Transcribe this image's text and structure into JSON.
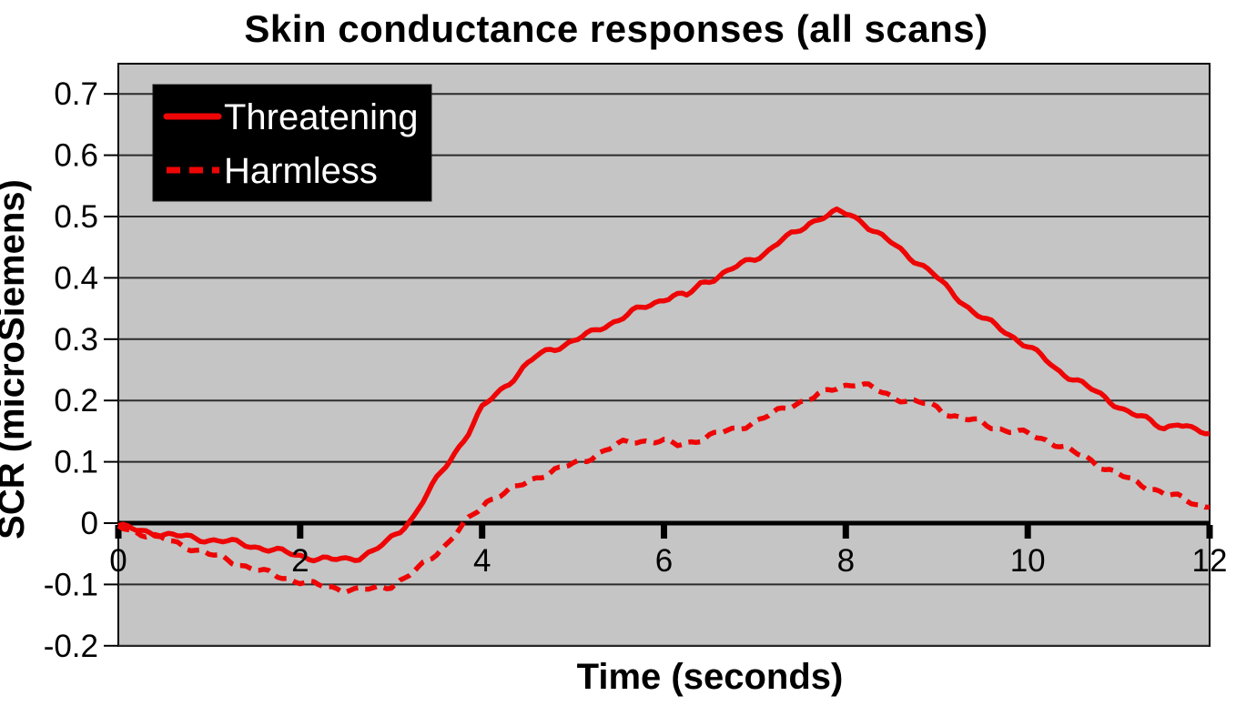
{
  "chart": {
    "background_color": "#ffffff",
    "plot_background_color": "#c5c5c5",
    "gridline_color": "#2b2b2b",
    "axis_color": "#000000",
    "series_color": "#ee0505",
    "legend_background": "#000000",
    "legend_text_color": "#ffffff"
  },
  "chart_data": {
    "type": "line",
    "title": "Skin conductance responses (all scans)",
    "xlabel": "Time (seconds)",
    "ylabel": "SCR (microSiemens)",
    "xlim": [
      0,
      12
    ],
    "ylim": [
      -0.2,
      0.75
    ],
    "grid": "horizontal",
    "legend_position": "top-left",
    "x_ticks": [
      {
        "v": 0,
        "label": "0"
      },
      {
        "v": 2,
        "label": "2"
      },
      {
        "v": 4,
        "label": "4"
      },
      {
        "v": 6,
        "label": "6"
      },
      {
        "v": 8,
        "label": "8"
      },
      {
        "v": 10,
        "label": "10"
      },
      {
        "v": 12,
        "label": "12"
      }
    ],
    "y_ticks": [
      {
        "v": 0.7,
        "label": "0.7"
      },
      {
        "v": 0.6,
        "label": "0.6"
      },
      {
        "v": 0.5,
        "label": "0.5"
      },
      {
        "v": 0.4,
        "label": "0.4"
      },
      {
        "v": 0.3,
        "label": "0.3"
      },
      {
        "v": 0.2,
        "label": "0.2"
      },
      {
        "v": 0.1,
        "label": "0.1"
      },
      {
        "v": 0,
        "label": "0"
      },
      {
        "v": -0.1,
        "label": "-0.1"
      },
      {
        "v": -0.2,
        "label": "-0.2"
      }
    ],
    "series": [
      {
        "name": "Threatening",
        "color": "#ee0505",
        "line_style": "solid",
        "points": [
          [
            0,
            -0.004
          ],
          [
            0.2,
            -0.012
          ],
          [
            0.4,
            -0.016
          ],
          [
            0.6,
            -0.02
          ],
          [
            0.8,
            -0.024
          ],
          [
            1.0,
            -0.027
          ],
          [
            1.2,
            -0.03
          ],
          [
            1.4,
            -0.035
          ],
          [
            1.6,
            -0.041
          ],
          [
            1.8,
            -0.047
          ],
          [
            2.0,
            -0.053
          ],
          [
            2.2,
            -0.058
          ],
          [
            2.35,
            -0.06
          ],
          [
            2.5,
            -0.059
          ],
          [
            2.65,
            -0.055
          ],
          [
            2.8,
            -0.046
          ],
          [
            2.95,
            -0.032
          ],
          [
            3.1,
            -0.012
          ],
          [
            3.25,
            0.012
          ],
          [
            3.4,
            0.048
          ],
          [
            3.55,
            0.082
          ],
          [
            3.7,
            0.115
          ],
          [
            3.85,
            0.148
          ],
          [
            4.0,
            0.187
          ],
          [
            4.15,
            0.21
          ],
          [
            4.3,
            0.23
          ],
          [
            4.45,
            0.252
          ],
          [
            4.6,
            0.272
          ],
          [
            4.75,
            0.283
          ],
          [
            4.9,
            0.291
          ],
          [
            5.05,
            0.3
          ],
          [
            5.2,
            0.31
          ],
          [
            5.35,
            0.322
          ],
          [
            5.5,
            0.332
          ],
          [
            5.65,
            0.344
          ],
          [
            5.8,
            0.353
          ],
          [
            5.95,
            0.363
          ],
          [
            6.1,
            0.372
          ],
          [
            6.25,
            0.37
          ],
          [
            6.4,
            0.39
          ],
          [
            6.55,
            0.4
          ],
          [
            6.7,
            0.41
          ],
          [
            6.85,
            0.422
          ],
          [
            7.0,
            0.432
          ],
          [
            7.15,
            0.445
          ],
          [
            7.3,
            0.462
          ],
          [
            7.45,
            0.473
          ],
          [
            7.6,
            0.49
          ],
          [
            7.75,
            0.5
          ],
          [
            7.9,
            0.507
          ],
          [
            8.05,
            0.503
          ],
          [
            8.2,
            0.49
          ],
          [
            8.35,
            0.472
          ],
          [
            8.5,
            0.457
          ],
          [
            8.65,
            0.44
          ],
          [
            8.8,
            0.425
          ],
          [
            8.95,
            0.408
          ],
          [
            9.1,
            0.385
          ],
          [
            9.25,
            0.365
          ],
          [
            9.4,
            0.345
          ],
          [
            9.55,
            0.33
          ],
          [
            9.7,
            0.317
          ],
          [
            9.85,
            0.303
          ],
          [
            10.0,
            0.289
          ],
          [
            10.15,
            0.272
          ],
          [
            10.3,
            0.252
          ],
          [
            10.45,
            0.24
          ],
          [
            10.6,
            0.228
          ],
          [
            10.75,
            0.213
          ],
          [
            10.9,
            0.2
          ],
          [
            11.05,
            0.186
          ],
          [
            11.2,
            0.175
          ],
          [
            11.35,
            0.166
          ],
          [
            11.5,
            0.156
          ],
          [
            11.65,
            0.163
          ],
          [
            11.8,
            0.152
          ],
          [
            12,
            0.146
          ]
        ]
      },
      {
        "name": "Harmless",
        "color": "#ee0505",
        "line_style": "dashed",
        "points": [
          [
            0,
            -0.006
          ],
          [
            0.2,
            -0.014
          ],
          [
            0.4,
            -0.022
          ],
          [
            0.6,
            -0.031
          ],
          [
            0.8,
            -0.04
          ],
          [
            1.0,
            -0.051
          ],
          [
            1.2,
            -0.06
          ],
          [
            1.4,
            -0.07
          ],
          [
            1.6,
            -0.08
          ],
          [
            1.8,
            -0.088
          ],
          [
            2.0,
            -0.095
          ],
          [
            2.2,
            -0.102
          ],
          [
            2.4,
            -0.106
          ],
          [
            2.6,
            -0.109
          ],
          [
            2.8,
            -0.108
          ],
          [
            3.0,
            -0.101
          ],
          [
            3.15,
            -0.09
          ],
          [
            3.3,
            -0.075
          ],
          [
            3.45,
            -0.055
          ],
          [
            3.6,
            -0.035
          ],
          [
            3.75,
            -0.01
          ],
          [
            3.9,
            0.012
          ],
          [
            4.05,
            0.035
          ],
          [
            4.2,
            0.048
          ],
          [
            4.35,
            0.056
          ],
          [
            4.5,
            0.066
          ],
          [
            4.65,
            0.078
          ],
          [
            4.8,
            0.087
          ],
          [
            4.95,
            0.093
          ],
          [
            5.1,
            0.1
          ],
          [
            5.25,
            0.112
          ],
          [
            5.4,
            0.122
          ],
          [
            5.55,
            0.13
          ],
          [
            5.7,
            0.134
          ],
          [
            5.85,
            0.135
          ],
          [
            6.0,
            0.133
          ],
          [
            6.15,
            0.127
          ],
          [
            6.3,
            0.133
          ],
          [
            6.45,
            0.14
          ],
          [
            6.6,
            0.146
          ],
          [
            6.75,
            0.152
          ],
          [
            6.9,
            0.16
          ],
          [
            7.05,
            0.168
          ],
          [
            7.2,
            0.178
          ],
          [
            7.35,
            0.19
          ],
          [
            7.5,
            0.198
          ],
          [
            7.65,
            0.205
          ],
          [
            7.8,
            0.215
          ],
          [
            7.95,
            0.224
          ],
          [
            8.1,
            0.228
          ],
          [
            8.25,
            0.222
          ],
          [
            8.4,
            0.213
          ],
          [
            8.55,
            0.205
          ],
          [
            8.7,
            0.199
          ],
          [
            8.85,
            0.195
          ],
          [
            9.0,
            0.189
          ],
          [
            9.15,
            0.177
          ],
          [
            9.3,
            0.17
          ],
          [
            9.45,
            0.165
          ],
          [
            9.6,
            0.158
          ],
          [
            9.75,
            0.152
          ],
          [
            9.9,
            0.148
          ],
          [
            10.05,
            0.143
          ],
          [
            10.2,
            0.136
          ],
          [
            10.35,
            0.127
          ],
          [
            10.5,
            0.115
          ],
          [
            10.65,
            0.106
          ],
          [
            10.8,
            0.094
          ],
          [
            10.95,
            0.083
          ],
          [
            11.1,
            0.072
          ],
          [
            11.25,
            0.063
          ],
          [
            11.4,
            0.055
          ],
          [
            11.55,
            0.046
          ],
          [
            11.7,
            0.04
          ],
          [
            11.85,
            0.032
          ],
          [
            12,
            0.026
          ]
        ]
      }
    ]
  }
}
